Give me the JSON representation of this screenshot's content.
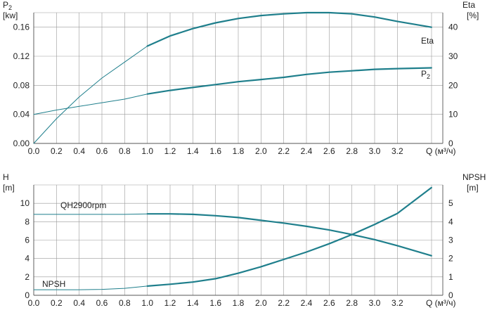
{
  "colors": {
    "curve": "#1f7f8c",
    "grid": "#9a9a9a",
    "text": "#222222"
  },
  "chart_data": [
    {
      "type": "line",
      "x_label": "Q (м³/ч)",
      "x_ticks": [
        "0.0",
        "0.2",
        "0.4",
        "0.6",
        "0.8",
        "1.0",
        "1.2",
        "1.4",
        "1.6",
        "1.8",
        "2.0",
        "2.2",
        "2.4",
        "2.6",
        "2.8",
        "3.0",
        "3.2"
      ],
      "xlim": [
        0,
        3.6
      ],
      "left_axis": {
        "label_line1": "P",
        "label_sub": "2",
        "label_line2": "[kw]",
        "ticks": [
          "0.00",
          "0.04",
          "0.08",
          "0.12",
          "0.16"
        ],
        "ylim": [
          0,
          0.18
        ]
      },
      "right_axis": {
        "label_line1": "Eta",
        "label_line2": "[%]",
        "ticks": [
          "0",
          "10",
          "20",
          "30",
          "40"
        ],
        "ylim": [
          0,
          45
        ]
      },
      "grid": true,
      "series": [
        {
          "name": "Eta",
          "axis": "right",
          "operating_from": 1.0,
          "x": [
            0,
            0.2,
            0.4,
            0.6,
            0.8,
            1.0,
            1.2,
            1.4,
            1.6,
            1.8,
            2.0,
            2.2,
            2.4,
            2.6,
            2.8,
            3.0,
            3.2,
            3.5
          ],
          "y": [
            0,
            8.5,
            16,
            22.5,
            28,
            33.5,
            37,
            39.5,
            41.5,
            43,
            44,
            44.6,
            45,
            45,
            44.6,
            43.5,
            42,
            40
          ]
        },
        {
          "name": "P",
          "name_sub": "2",
          "axis": "left",
          "operating_from": 1.0,
          "x": [
            0,
            0.2,
            0.4,
            0.6,
            0.8,
            1.0,
            1.2,
            1.4,
            1.6,
            1.8,
            2.0,
            2.2,
            2.4,
            2.6,
            2.8,
            3.0,
            3.2,
            3.5
          ],
          "y": [
            0.04,
            0.046,
            0.051,
            0.056,
            0.061,
            0.068,
            0.073,
            0.077,
            0.081,
            0.085,
            0.088,
            0.091,
            0.095,
            0.098,
            0.1,
            0.102,
            0.103,
            0.104
          ]
        }
      ]
    },
    {
      "type": "line",
      "x_label": "Q (м³/ч)",
      "x_ticks": [
        "0.0",
        "0.2",
        "0.4",
        "0.6",
        "0.8",
        "1.0",
        "1.2",
        "1.4",
        "1.6",
        "1.8",
        "2.0",
        "2.2",
        "2.4",
        "2.6",
        "2.8",
        "3.0",
        "3.2"
      ],
      "xlim": [
        0,
        3.6
      ],
      "left_axis": {
        "label_line1": "H",
        "label_line2": "[m]",
        "ticks": [
          "0",
          "2",
          "4",
          "6",
          "8",
          "10"
        ],
        "ylim": [
          0,
          12
        ]
      },
      "right_axis": {
        "label_line1": "NPSH",
        "label_line2": "[m]",
        "ticks": [
          "0",
          "1",
          "2",
          "3",
          "4",
          "5"
        ],
        "ylim": [
          0,
          6
        ]
      },
      "grid": true,
      "series": [
        {
          "name": "QH2900rpm",
          "axis": "left",
          "operating_from": 1.0,
          "x": [
            0,
            0.2,
            0.4,
            0.6,
            0.8,
            1.0,
            1.2,
            1.4,
            1.6,
            1.8,
            2.0,
            2.2,
            2.4,
            2.6,
            2.8,
            3.0,
            3.2,
            3.5
          ],
          "y": [
            8.8,
            8.8,
            8.8,
            8.8,
            8.8,
            8.85,
            8.85,
            8.8,
            8.65,
            8.45,
            8.15,
            7.85,
            7.5,
            7.1,
            6.6,
            6.05,
            5.4,
            4.3
          ]
        },
        {
          "name": "NPSH",
          "axis": "right",
          "operating_from": 1.0,
          "x": [
            0,
            0.2,
            0.4,
            0.6,
            0.8,
            1.0,
            1.2,
            1.4,
            1.6,
            1.8,
            2.0,
            2.2,
            2.4,
            2.6,
            2.8,
            3.0,
            3.2,
            3.5
          ],
          "y": [
            0.3,
            0.3,
            0.3,
            0.32,
            0.38,
            0.5,
            0.6,
            0.72,
            0.9,
            1.2,
            1.55,
            1.95,
            2.35,
            2.8,
            3.3,
            3.85,
            4.45,
            5.85
          ]
        }
      ]
    }
  ]
}
